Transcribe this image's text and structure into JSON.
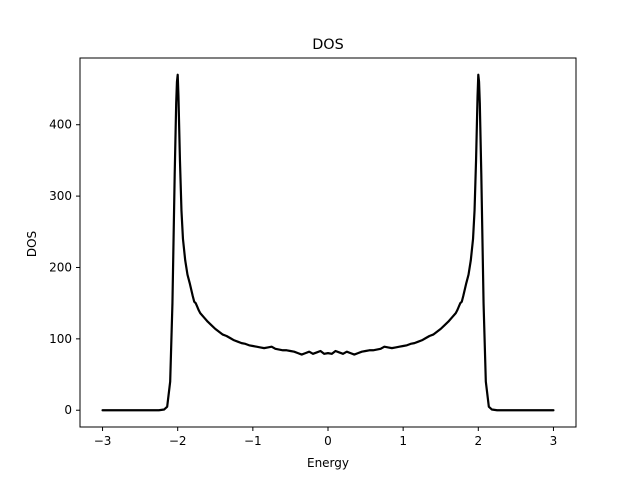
{
  "chart_data": {
    "type": "line",
    "title": "DOS",
    "xlabel": "Energy",
    "ylabel": "DOS",
    "xlim": [
      -3.3,
      3.3
    ],
    "ylim": [
      -23.5,
      493.5
    ],
    "xticks": [
      -3,
      -2,
      -1,
      0,
      1,
      2,
      3
    ],
    "xtick_labels": [
      "−3",
      "−2",
      "−1",
      "0",
      "1",
      "2",
      "3"
    ],
    "yticks": [
      0,
      100,
      200,
      300,
      400
    ],
    "ytick_labels": [
      "0",
      "100",
      "200",
      "300",
      "400"
    ],
    "grid": false,
    "legend": null,
    "line_color": "#000000",
    "series": [
      {
        "x": [
          -3.0,
          -2.5,
          -2.25,
          -2.18,
          -2.14,
          -2.1,
          -2.07,
          -2.04,
          -2.02,
          -2.01,
          -2.0,
          -1.99,
          -1.97,
          -1.95,
          -1.93,
          -1.9,
          -1.87,
          -1.84,
          -1.8,
          -1.78,
          -1.76,
          -1.74,
          -1.72,
          -1.7,
          -1.65,
          -1.6,
          -1.55,
          -1.5,
          -1.45,
          -1.4,
          -1.35,
          -1.3,
          -1.25,
          -1.2,
          -1.15,
          -1.1,
          -1.05,
          -1.0,
          -0.95,
          -0.9,
          -0.85,
          -0.8,
          -0.75,
          -0.7,
          -0.65,
          -0.6,
          -0.55,
          -0.5,
          -0.45,
          -0.4,
          -0.35,
          -0.3,
          -0.25,
          -0.2,
          -0.15,
          -0.1,
          -0.05,
          0.0,
          0.05,
          0.1,
          0.15,
          0.2,
          0.25,
          0.3,
          0.35,
          0.4,
          0.45,
          0.5,
          0.55,
          0.6,
          0.65,
          0.7,
          0.75,
          0.8,
          0.85,
          0.9,
          0.95,
          1.0,
          1.05,
          1.1,
          1.15,
          1.2,
          1.25,
          1.3,
          1.35,
          1.4,
          1.45,
          1.5,
          1.55,
          1.6,
          1.65,
          1.7,
          1.72,
          1.74,
          1.76,
          1.78,
          1.8,
          1.84,
          1.87,
          1.9,
          1.93,
          1.95,
          1.97,
          1.99,
          2.0,
          2.01,
          2.02,
          2.04,
          2.07,
          2.1,
          2.14,
          2.18,
          2.25,
          2.5,
          3.0
        ],
        "y": [
          0,
          0,
          0,
          1,
          5,
          40,
          150,
          330,
          430,
          460,
          470,
          440,
          350,
          280,
          240,
          210,
          190,
          178,
          160,
          152,
          150,
          145,
          140,
          136,
          130,
          124,
          119,
          114,
          110,
          106,
          104,
          101,
          98,
          96,
          94,
          93,
          91,
          90,
          89,
          88,
          87,
          88,
          89,
          86,
          85,
          84,
          84,
          83,
          82,
          80,
          78,
          80,
          82,
          79,
          81,
          83,
          79,
          80,
          79,
          83,
          81,
          79,
          82,
          80,
          78,
          80,
          82,
          83,
          84,
          84,
          85,
          86,
          89,
          88,
          87,
          88,
          89,
          90,
          91,
          93,
          94,
          96,
          98,
          101,
          104,
          106,
          110,
          114,
          119,
          124,
          130,
          136,
          140,
          145,
          150,
          152,
          160,
          178,
          190,
          210,
          240,
          280,
          350,
          440,
          470,
          460,
          430,
          330,
          150,
          40,
          5,
          1,
          0,
          0,
          0
        ]
      }
    ]
  }
}
